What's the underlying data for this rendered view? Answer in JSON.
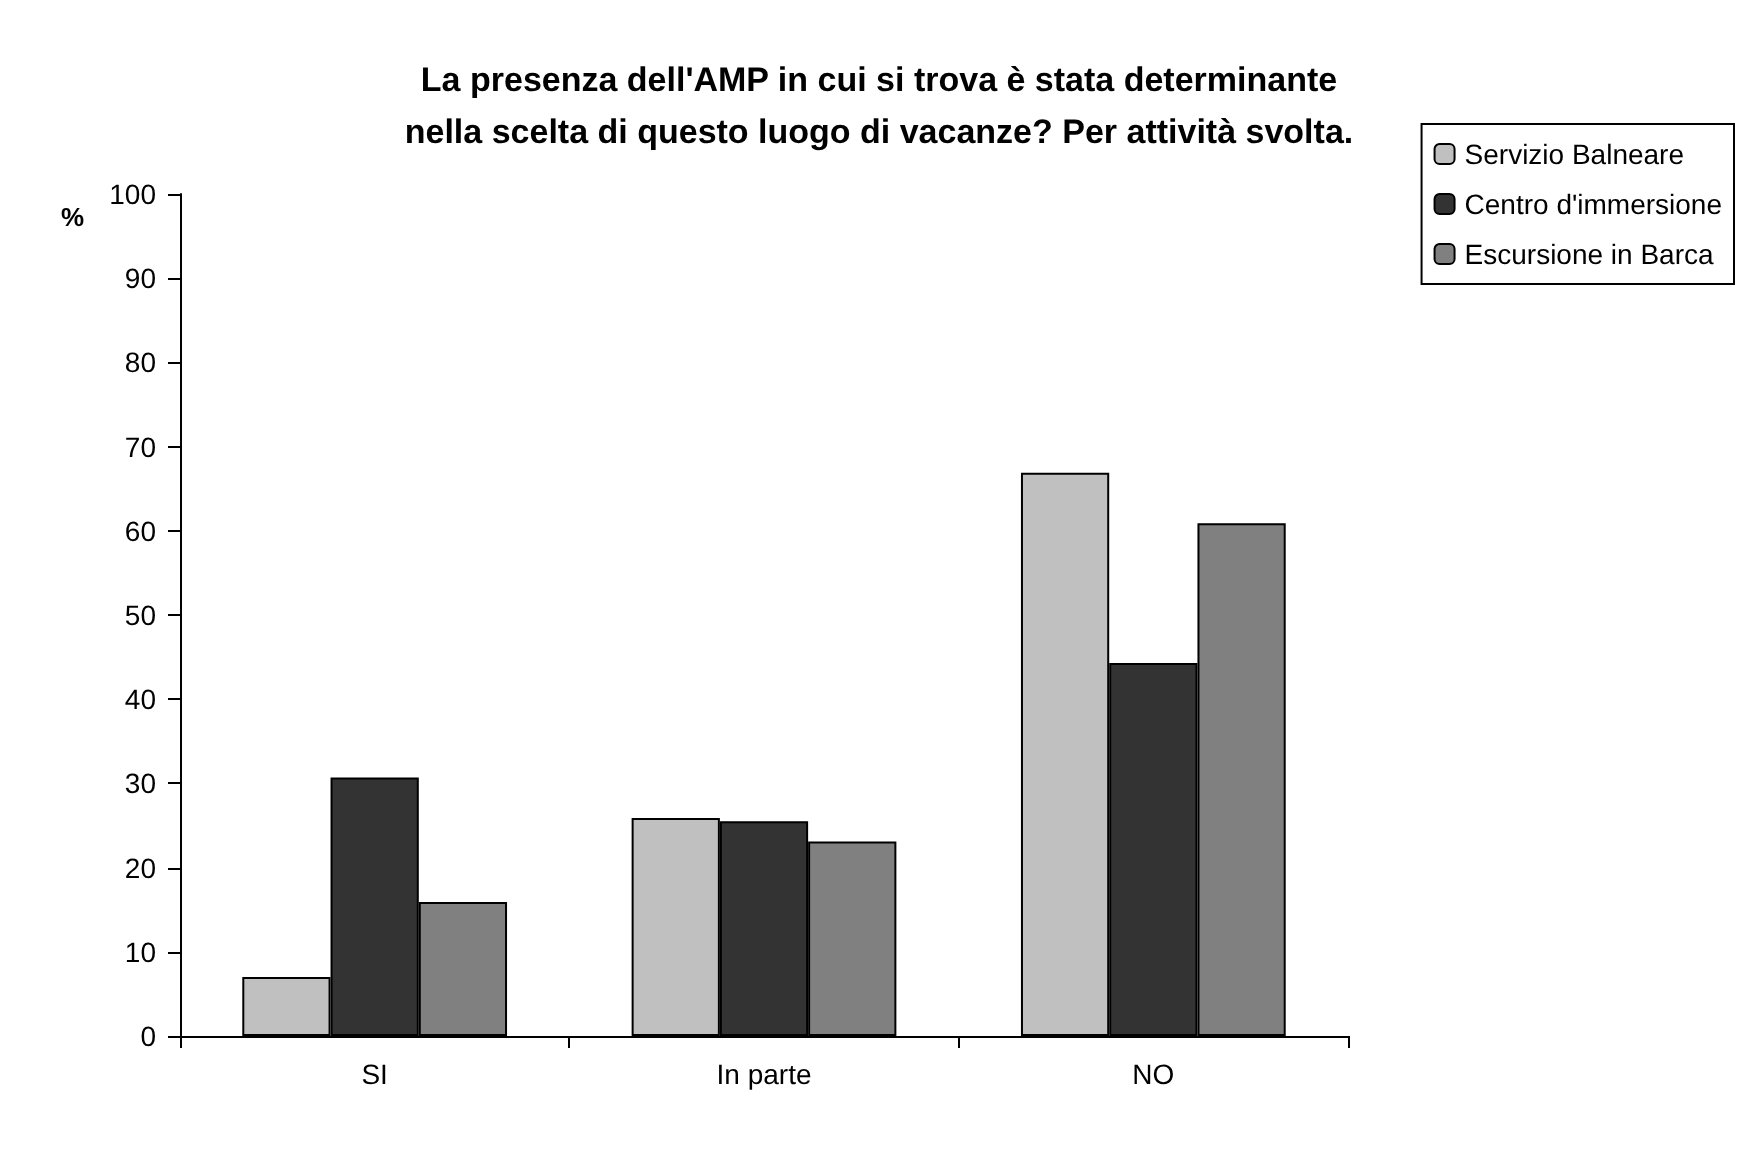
{
  "chart_data": {
    "type": "bar",
    "title": "La presenza dell'AMP in cui si trova è stata determinante\nnella scelta di questo luogo di vacanze? Per attività svolta.",
    "ylabel": "%",
    "categories": [
      "SI",
      "In parte",
      "NO"
    ],
    "series": [
      {
        "name": "Servizio Balneare",
        "color": "#c0c0c0",
        "values": [
          7.0,
          25.9,
          66.9
        ]
      },
      {
        "name": "Centro d'immersione",
        "color": "#333333",
        "values": [
          30.7,
          25.5,
          44.3
        ]
      },
      {
        "name": "Escursione in Barca",
        "color": "#808080",
        "values": [
          15.9,
          23.1,
          60.9
        ]
      }
    ],
    "ylim": [
      0,
      100
    ],
    "yticks": [
      0,
      10,
      20,
      30,
      40,
      50,
      60,
      70,
      80,
      90,
      100
    ],
    "grid": false,
    "legend": "top right"
  }
}
